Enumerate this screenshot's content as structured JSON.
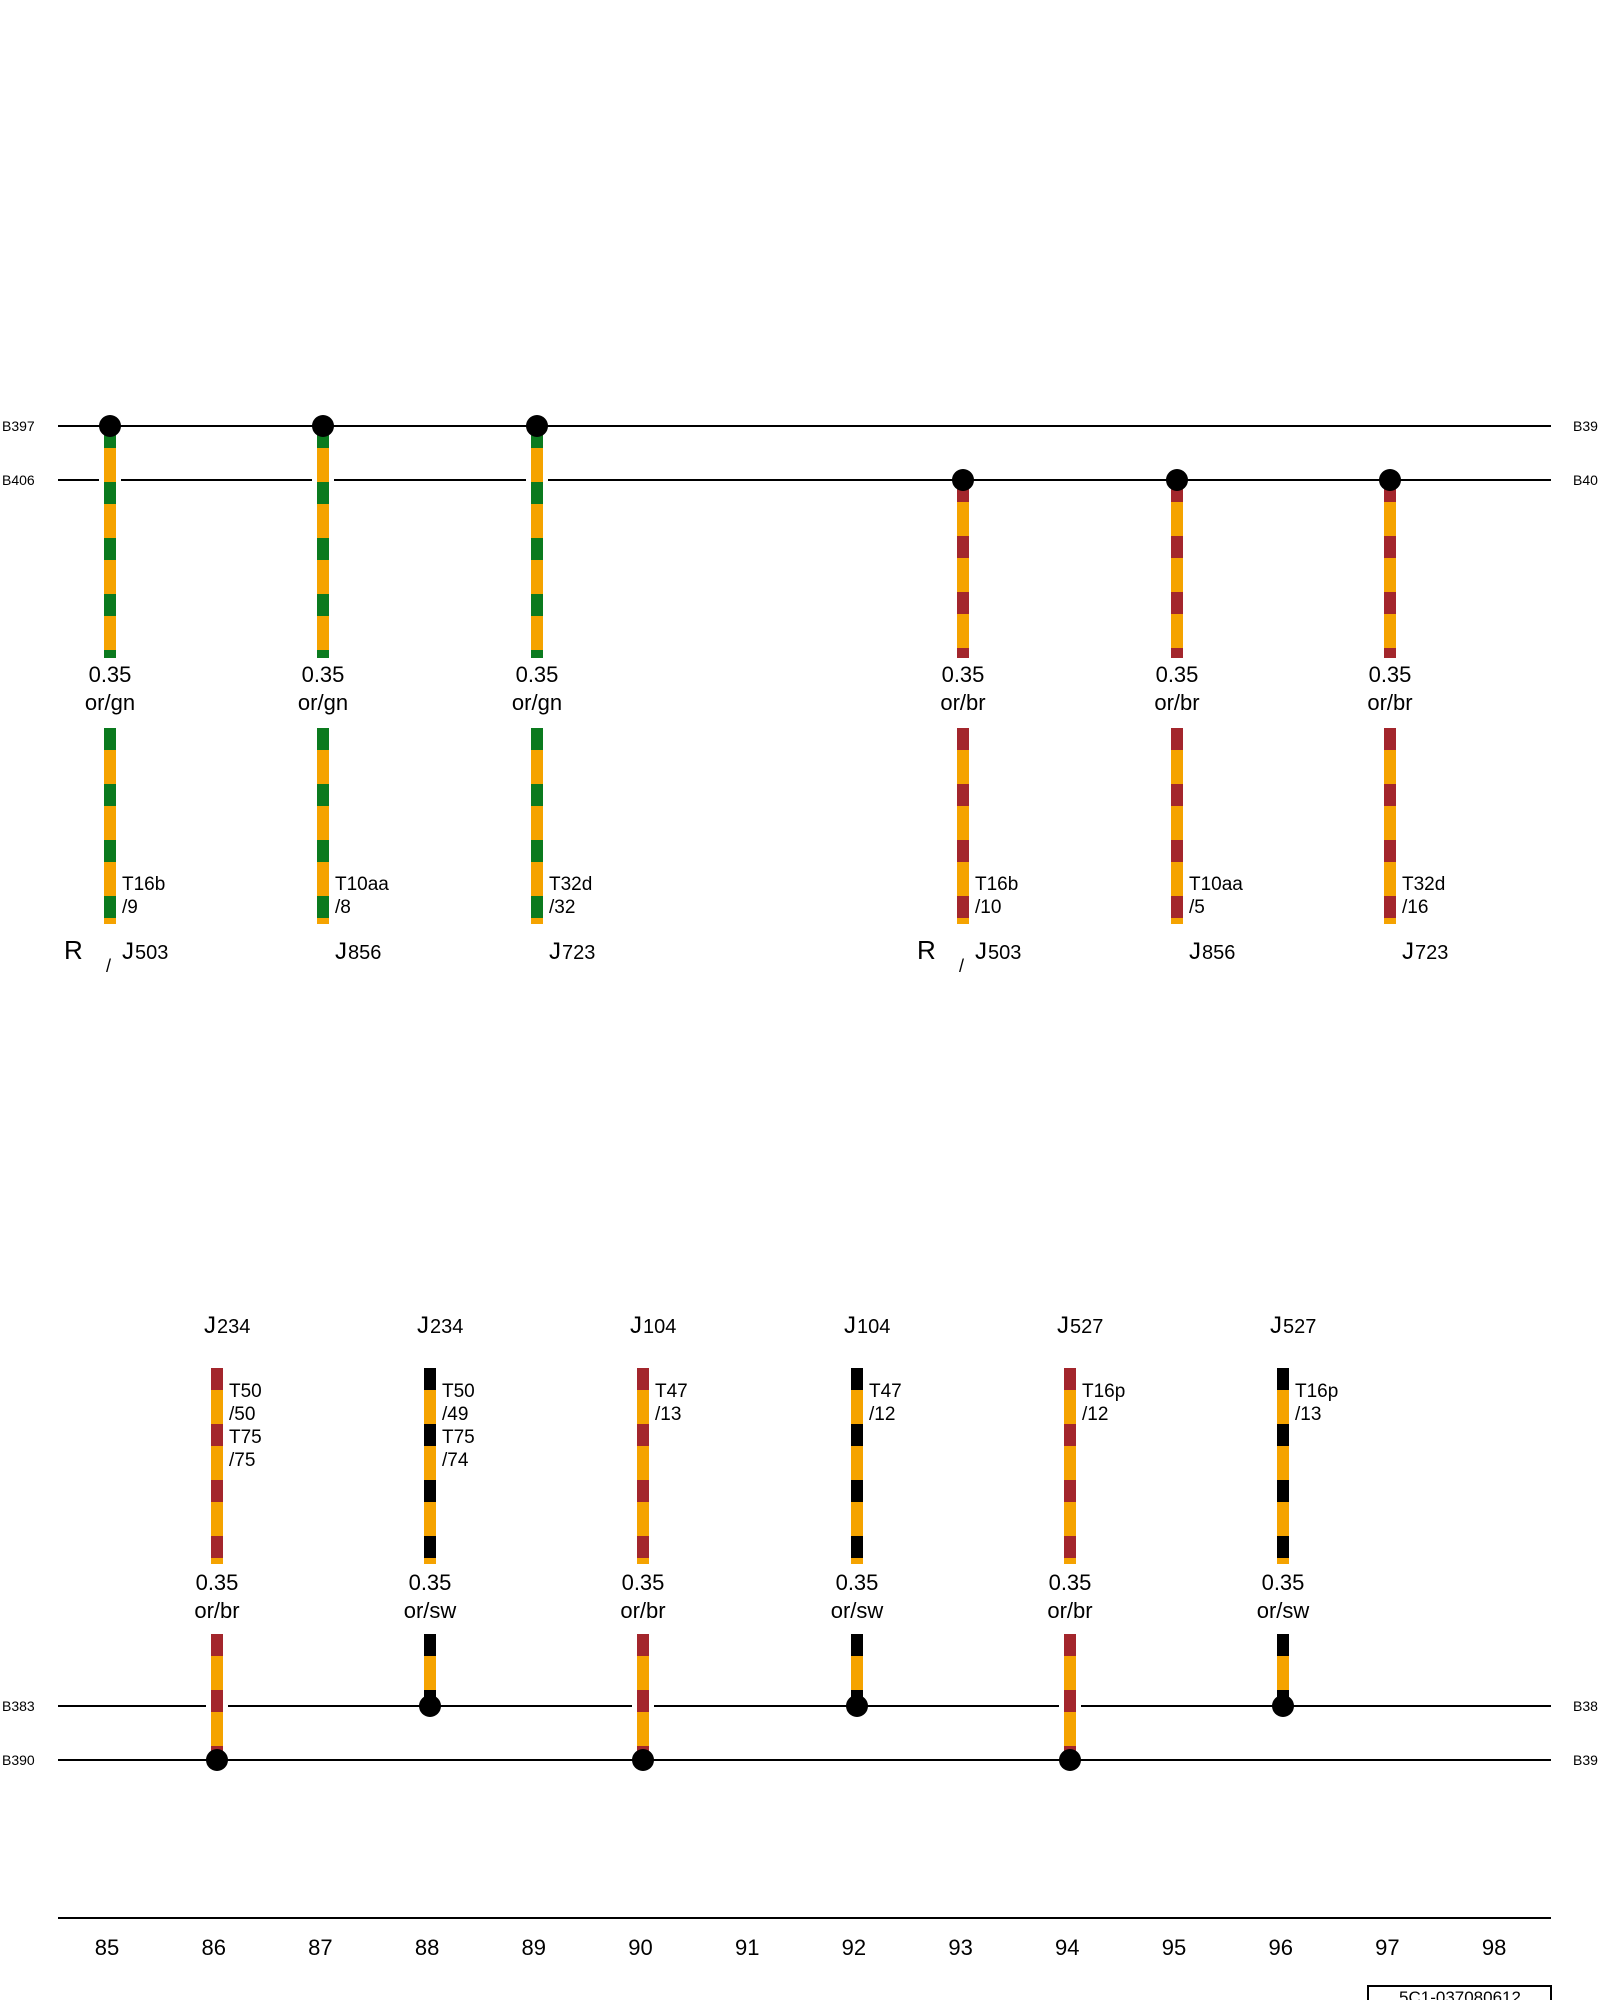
{
  "colors": {
    "or": "#f5a300",
    "gn": "#0b7a1e",
    "br": "#a3262c",
    "sw": "#000000",
    "line": "#000000"
  },
  "top": {
    "buses": [
      {
        "left": "B397",
        "right": "B39"
      },
      {
        "left": "B406",
        "right": "B40"
      }
    ],
    "wires": [
      {
        "size": "0.35",
        "color": "or/gn",
        "stripe": "gn",
        "bus": 0,
        "terminal": "T16b",
        "pin": "/9",
        "component_prefix": "J",
        "component": "503",
        "note": "R",
        "slash": "/"
      },
      {
        "size": "0.35",
        "color": "or/gn",
        "stripe": "gn",
        "bus": 0,
        "terminal": "T10aa",
        "pin": "/8",
        "component_prefix": "J",
        "component": "856"
      },
      {
        "size": "0.35",
        "color": "or/gn",
        "stripe": "gn",
        "bus": 0,
        "terminal": "T32d",
        "pin": "/32",
        "component_prefix": "J",
        "component": "723"
      },
      {
        "size": "0.35",
        "color": "or/br",
        "stripe": "br",
        "bus": 1,
        "terminal": "T16b",
        "pin": "/10",
        "component_prefix": "J",
        "component": "503",
        "note": "R",
        "slash": "/"
      },
      {
        "size": "0.35",
        "color": "or/br",
        "stripe": "br",
        "bus": 1,
        "terminal": "T10aa",
        "pin": "/5",
        "component_prefix": "J",
        "component": "856"
      },
      {
        "size": "0.35",
        "color": "or/br",
        "stripe": "br",
        "bus": 1,
        "terminal": "T32d",
        "pin": "/16",
        "component_prefix": "J",
        "component": "723"
      }
    ]
  },
  "bottom": {
    "buses": [
      {
        "left": "B383",
        "right": "B38"
      },
      {
        "left": "B390",
        "right": "B39"
      }
    ],
    "wires": [
      {
        "component_prefix": "J",
        "component": "234",
        "terminal_lines": [
          "T50",
          "/50",
          "T75",
          "/75"
        ],
        "size": "0.35",
        "color": "or/br",
        "stripe": "br",
        "bus": 1
      },
      {
        "component_prefix": "J",
        "component": "234",
        "terminal_lines": [
          "T50",
          "/49",
          "T75",
          "/74"
        ],
        "size": "0.35",
        "color": "or/sw",
        "stripe": "sw",
        "bus": 0
      },
      {
        "component_prefix": "J",
        "component": "104",
        "terminal_lines": [
          "T47",
          "/13"
        ],
        "size": "0.35",
        "color": "or/br",
        "stripe": "br",
        "bus": 1
      },
      {
        "component_prefix": "J",
        "component": "104",
        "terminal_lines": [
          "T47",
          "/12"
        ],
        "size": "0.35",
        "color": "or/sw",
        "stripe": "sw",
        "bus": 0
      },
      {
        "component_prefix": "J",
        "component": "527",
        "terminal_lines": [
          "T16p",
          "/12"
        ],
        "size": "0.35",
        "color": "or/br",
        "stripe": "br",
        "bus": 1
      },
      {
        "component_prefix": "J",
        "component": "527",
        "terminal_lines": [
          "T16p",
          "/13"
        ],
        "size": "0.35",
        "color": "or/sw",
        "stripe": "sw",
        "bus": 0
      }
    ]
  },
  "ruler": {
    "numbers": [
      "85",
      "86",
      "87",
      "88",
      "89",
      "90",
      "91",
      "92",
      "93",
      "94",
      "95",
      "96",
      "97",
      "98"
    ]
  },
  "drawing_id": "5C1-037080612"
}
